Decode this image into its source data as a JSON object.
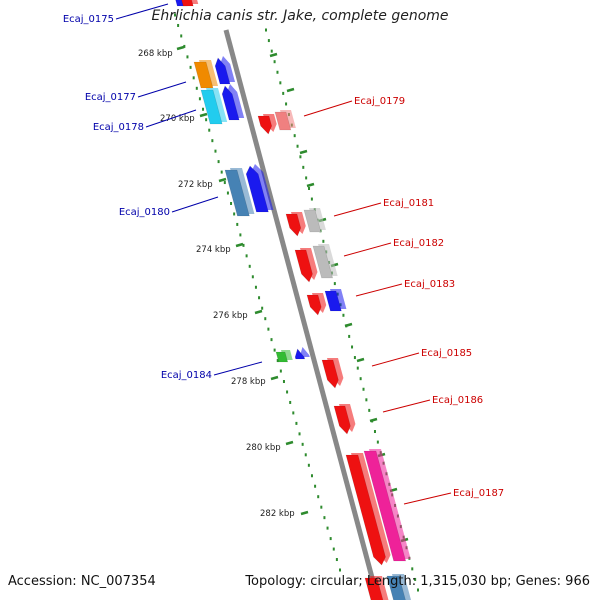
{
  "title": "Ehrlichia canis str. Jake, complete genome",
  "footer": {
    "accession": "Accession: NC_007354",
    "topology": "Topology: circular; Length: 1,315,030 bp; Genes: 966"
  },
  "kbp_ticks": [
    "268 kbp",
    "270 kbp",
    "272 kbp",
    "274 kbp",
    "276 kbp",
    "278 kbp",
    "280 kbp",
    "282 kbp"
  ],
  "genes": [
    {
      "label": "Ecaj_0175",
      "strand": "forward",
      "color": "#0000aa"
    },
    {
      "label": "Ecaj_0177",
      "strand": "forward",
      "color": "#0000aa"
    },
    {
      "label": "Ecaj_0178",
      "strand": "forward",
      "color": "#0000aa"
    },
    {
      "label": "Ecaj_0179",
      "strand": "reverse",
      "color": "#cc0000"
    },
    {
      "label": "Ecaj_0180",
      "strand": "forward",
      "color": "#0000aa"
    },
    {
      "label": "Ecaj_0181",
      "strand": "reverse",
      "color": "#cc0000"
    },
    {
      "label": "Ecaj_0182",
      "strand": "reverse",
      "color": "#cc0000"
    },
    {
      "label": "Ecaj_0183",
      "strand": "reverse",
      "color": "#cc0000"
    },
    {
      "label": "Ecaj_0184",
      "strand": "forward",
      "color": "#0000aa"
    },
    {
      "label": "Ecaj_0185",
      "strand": "reverse",
      "color": "#cc0000"
    },
    {
      "label": "Ecaj_0186",
      "strand": "reverse",
      "color": "#cc0000"
    },
    {
      "label": "Ecaj_0187",
      "strand": "reverse",
      "color": "#cc0000"
    }
  ],
  "colors": {
    "backbone": "#888888",
    "dotted_track": "#2e8b2e",
    "forward_label": "#0000aa",
    "reverse_label": "#cc0000",
    "cds_blue": "#1a1aee",
    "cds_red": "#ee1111",
    "cds_orange": "#f08a00",
    "cds_cyan": "#22ccee",
    "cds_steel": "#4682b4",
    "cds_gray": "#bbbbbb",
    "cds_green": "#33bb33",
    "cds_pink": "#ee2299",
    "cds_salmon": "#f08080"
  }
}
